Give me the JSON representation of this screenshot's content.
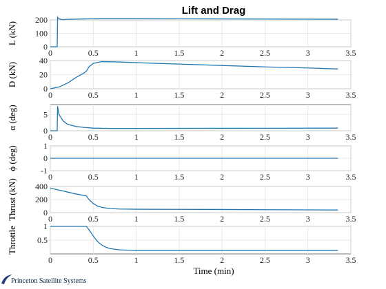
{
  "figure": {
    "title": "Lift and Drag",
    "xlabel": "Time (min)",
    "series_color": "#1f77b4"
  },
  "branding": {
    "logo_text": "Princeton Satellite Systems",
    "logo_color": "#0a1e46"
  },
  "chart_data": [
    {
      "type": "line",
      "ylabel": "L (kN)",
      "xlim": [
        0,
        3.5
      ],
      "ylim": [
        0,
        200
      ],
      "xticks": [
        "0",
        "0.5",
        "1",
        "1.5",
        "2",
        "2.5",
        "3",
        "3.5"
      ],
      "yticks": [
        "0",
        "100",
        "200"
      ],
      "x": [
        0,
        0.08,
        0.085,
        0.09,
        0.1,
        0.12,
        0.15,
        0.2,
        0.4,
        0.6,
        1.0,
        2.0,
        3.35
      ],
      "y": [
        0,
        0,
        220,
        215,
        210,
        205,
        202,
        205,
        208,
        210,
        210,
        208,
        206
      ]
    },
    {
      "type": "line",
      "ylabel": "D (kN)",
      "xlim": [
        0,
        3.5
      ],
      "ylim": [
        0,
        40
      ],
      "xticks": [
        "0",
        "0.5",
        "1",
        "1.5",
        "2",
        "2.5",
        "3",
        "3.5"
      ],
      "yticks": [
        "0",
        "20",
        "40"
      ],
      "x": [
        0,
        0.1,
        0.2,
        0.3,
        0.4,
        0.42,
        0.45,
        0.5,
        0.6,
        0.8,
        1.0,
        1.5,
        2.0,
        2.5,
        3.0,
        3.35
      ],
      "y": [
        0,
        2.5,
        8,
        16,
        23,
        25,
        31,
        36,
        38.5,
        38,
        37,
        35,
        33,
        31,
        29.5,
        28
      ]
    },
    {
      "type": "line",
      "ylabel": "α (deg)",
      "xlim": [
        0,
        3.5
      ],
      "ylim": [
        0,
        8
      ],
      "xticks": [
        "0",
        "0.5",
        "1",
        "1.5",
        "2",
        "2.5",
        "3",
        "3.5"
      ],
      "yticks": [
        "0",
        "5"
      ],
      "x": [
        0,
        0.08,
        0.085,
        0.1,
        0.15,
        0.2,
        0.3,
        0.4,
        0.5,
        0.7,
        1.0,
        2.0,
        3.35
      ],
      "y": [
        0,
        0,
        7.5,
        5,
        3,
        2,
        1.3,
        1.0,
        0.8,
        0.7,
        0.7,
        0.75,
        0.8
      ]
    },
    {
      "type": "line",
      "ylabel": "ϕ (deg)",
      "xlim": [
        0,
        3.5
      ],
      "ylim": [
        -1,
        1
      ],
      "xticks": [
        "0",
        "0.5",
        "1",
        "1.5",
        "2",
        "2.5",
        "3",
        "3.5"
      ],
      "yticks": [
        "-1",
        "0",
        "1"
      ],
      "x": [
        0,
        3.35
      ],
      "y": [
        0,
        0
      ]
    },
    {
      "type": "line",
      "ylabel": "Thrust (kN)",
      "xlim": [
        0,
        3.5
      ],
      "ylim": [
        0,
        400
      ],
      "xticks": [
        "0",
        "0.5",
        "1",
        "1.5",
        "2",
        "2.5",
        "3",
        "3.5"
      ],
      "yticks": [
        "0",
        "200",
        "400"
      ],
      "x": [
        0,
        0.1,
        0.2,
        0.3,
        0.42,
        0.45,
        0.5,
        0.55,
        0.6,
        0.7,
        0.8,
        1.0,
        1.5,
        2.0,
        2.5,
        3.0,
        3.35
      ],
      "y": [
        375,
        345,
        315,
        285,
        255,
        200,
        140,
        100,
        80,
        62,
        55,
        52,
        50,
        48,
        45,
        42,
        40
      ]
    },
    {
      "type": "line",
      "ylabel": "Throttle",
      "xlim": [
        0,
        3.5
      ],
      "ylim": [
        0,
        1
      ],
      "xticks": [
        "0",
        "0.5",
        "1",
        "1.5",
        "2",
        "2.5",
        "3",
        "3.5"
      ],
      "yticks": [
        "0.5",
        "1"
      ],
      "x": [
        0,
        0.42,
        0.45,
        0.5,
        0.55,
        0.6,
        0.65,
        0.7,
        0.8,
        0.9,
        1.0,
        1.5,
        2.0,
        2.5,
        3.0,
        3.35
      ],
      "y": [
        1,
        1,
        0.88,
        0.65,
        0.45,
        0.32,
        0.24,
        0.19,
        0.15,
        0.135,
        0.13,
        0.13,
        0.13,
        0.13,
        0.13,
        0.13
      ]
    }
  ]
}
